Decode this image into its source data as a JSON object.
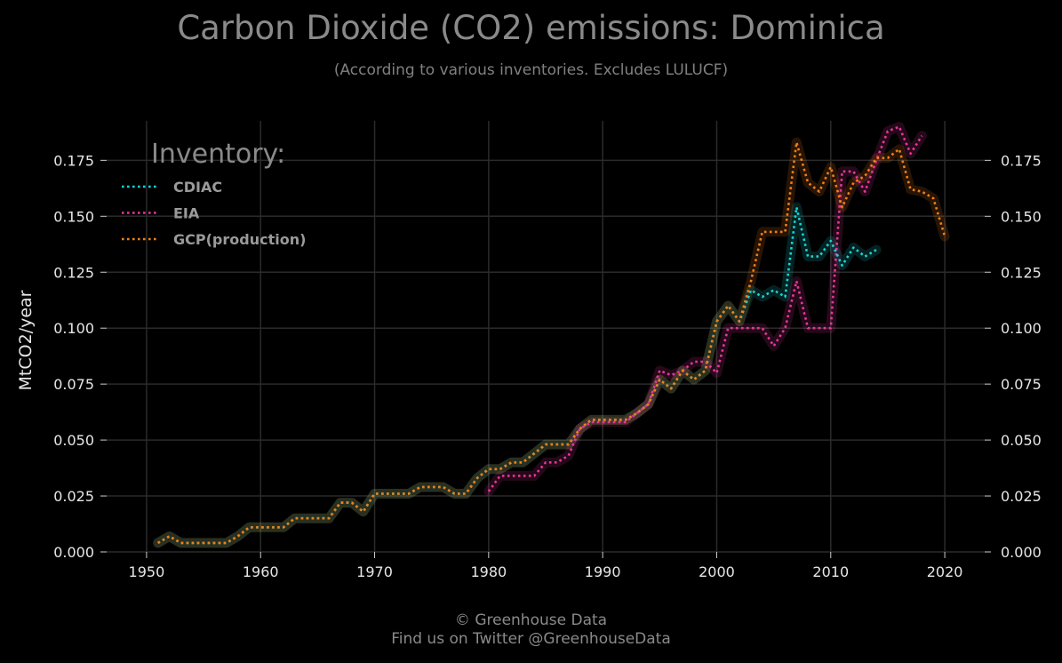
{
  "title": "Carbon Dioxide (CO2) emissions: Dominica",
  "subtitle": "(According to various inventories. Excludes LULUCF)",
  "credit": {
    "line1": "© Greenhouse Data",
    "line2": "Find us on Twitter @GreenhouseData"
  },
  "chart_data": {
    "type": "line",
    "ylabel": "MtCO2/year",
    "xlim": [
      1946.5,
      2023.5
    ],
    "ylim": [
      0,
      0.195
    ],
    "xticks": [
      1950,
      1960,
      1970,
      1980,
      1990,
      2000,
      2010,
      2020
    ],
    "yticks": [
      0.0,
      0.025,
      0.05,
      0.075,
      0.1,
      0.125,
      0.15,
      0.175
    ],
    "ytick_labels": [
      "0.000",
      "0.025",
      "0.050",
      "0.075",
      "0.100",
      "0.125",
      "0.150",
      "0.175"
    ],
    "grid": true,
    "right_axis_mirror": true,
    "legend": {
      "title": "Inventory:",
      "placement": "top-left"
    },
    "series": [
      {
        "name": "CDIAC",
        "color": "#17d4d4",
        "x": [
          1951,
          1952,
          1953,
          1954,
          1955,
          1956,
          1957,
          1958,
          1959,
          1960,
          1961,
          1962,
          1963,
          1964,
          1965,
          1966,
          1967,
          1968,
          1969,
          1970,
          1971,
          1972,
          1973,
          1974,
          1975,
          1976,
          1977,
          1978,
          1979,
          1980,
          1981,
          1982,
          1983,
          1984,
          1985,
          1986,
          1987,
          1988,
          1989,
          1990,
          1991,
          1992,
          1993,
          1994,
          1995,
          1996,
          1997,
          1998,
          1999,
          2000,
          2001,
          2002,
          2003,
          2004,
          2005,
          2006,
          2007,
          2008,
          2009,
          2010,
          2011,
          2012,
          2013,
          2014
        ],
        "y": [
          0.004,
          0.007,
          0.004,
          0.004,
          0.004,
          0.004,
          0.004,
          0.007,
          0.011,
          0.011,
          0.011,
          0.011,
          0.015,
          0.015,
          0.015,
          0.015,
          0.022,
          0.022,
          0.018,
          0.026,
          0.026,
          0.026,
          0.026,
          0.029,
          0.029,
          0.029,
          0.026,
          0.026,
          0.033,
          0.037,
          0.037,
          0.04,
          0.04,
          0.044,
          0.048,
          0.048,
          0.048,
          0.055,
          0.059,
          0.059,
          0.059,
          0.059,
          0.062,
          0.066,
          0.077,
          0.073,
          0.081,
          0.077,
          0.081,
          0.103,
          0.11,
          0.103,
          0.117,
          0.114,
          0.117,
          0.114,
          0.154,
          0.132,
          0.132,
          0.139,
          0.128,
          0.136,
          0.132,
          0.135
        ]
      },
      {
        "name": "EIA",
        "color": "#e8369a",
        "x": [
          1980,
          1981,
          1982,
          1983,
          1984,
          1985,
          1986,
          1987,
          1988,
          1989,
          1990,
          1991,
          1992,
          1993,
          1994,
          1995,
          1996,
          1997,
          1998,
          1999,
          2000,
          2001,
          2002,
          2003,
          2004,
          2005,
          2006,
          2007,
          2008,
          2009,
          2010,
          2011,
          2012,
          2013,
          2014,
          2015,
          2016,
          2017,
          2018
        ],
        "y": [
          0.027,
          0.034,
          0.034,
          0.034,
          0.034,
          0.04,
          0.04,
          0.043,
          0.055,
          0.058,
          0.058,
          0.058,
          0.058,
          0.062,
          0.066,
          0.081,
          0.079,
          0.081,
          0.085,
          0.085,
          0.08,
          0.1,
          0.1,
          0.1,
          0.1,
          0.092,
          0.1,
          0.121,
          0.1,
          0.1,
          0.1,
          0.17,
          0.17,
          0.161,
          0.175,
          0.188,
          0.19,
          0.178,
          0.186
        ]
      },
      {
        "name": "GCP(production)",
        "color": "#f07f16",
        "x": [
          1951,
          1952,
          1953,
          1954,
          1955,
          1956,
          1957,
          1958,
          1959,
          1960,
          1961,
          1962,
          1963,
          1964,
          1965,
          1966,
          1967,
          1968,
          1969,
          1970,
          1971,
          1972,
          1973,
          1974,
          1975,
          1976,
          1977,
          1978,
          1979,
          1980,
          1981,
          1982,
          1983,
          1984,
          1985,
          1986,
          1987,
          1988,
          1989,
          1990,
          1991,
          1992,
          1993,
          1994,
          1995,
          1996,
          1997,
          1998,
          1999,
          2000,
          2001,
          2002,
          2003,
          2004,
          2005,
          2006,
          2007,
          2008,
          2009,
          2010,
          2011,
          2012,
          2013,
          2014,
          2015,
          2016,
          2017,
          2018,
          2019,
          2020
        ],
        "y": [
          0.004,
          0.007,
          0.004,
          0.004,
          0.004,
          0.004,
          0.004,
          0.007,
          0.011,
          0.011,
          0.011,
          0.011,
          0.015,
          0.015,
          0.015,
          0.015,
          0.022,
          0.022,
          0.018,
          0.026,
          0.026,
          0.026,
          0.026,
          0.029,
          0.029,
          0.029,
          0.026,
          0.026,
          0.033,
          0.037,
          0.037,
          0.04,
          0.04,
          0.044,
          0.048,
          0.048,
          0.048,
          0.055,
          0.059,
          0.059,
          0.059,
          0.059,
          0.062,
          0.066,
          0.077,
          0.073,
          0.081,
          0.077,
          0.081,
          0.103,
          0.11,
          0.103,
          0.121,
          0.143,
          0.143,
          0.143,
          0.183,
          0.165,
          0.161,
          0.172,
          0.154,
          0.165,
          0.168,
          0.176,
          0.176,
          0.18,
          0.162,
          0.161,
          0.158,
          0.141
        ]
      }
    ]
  }
}
